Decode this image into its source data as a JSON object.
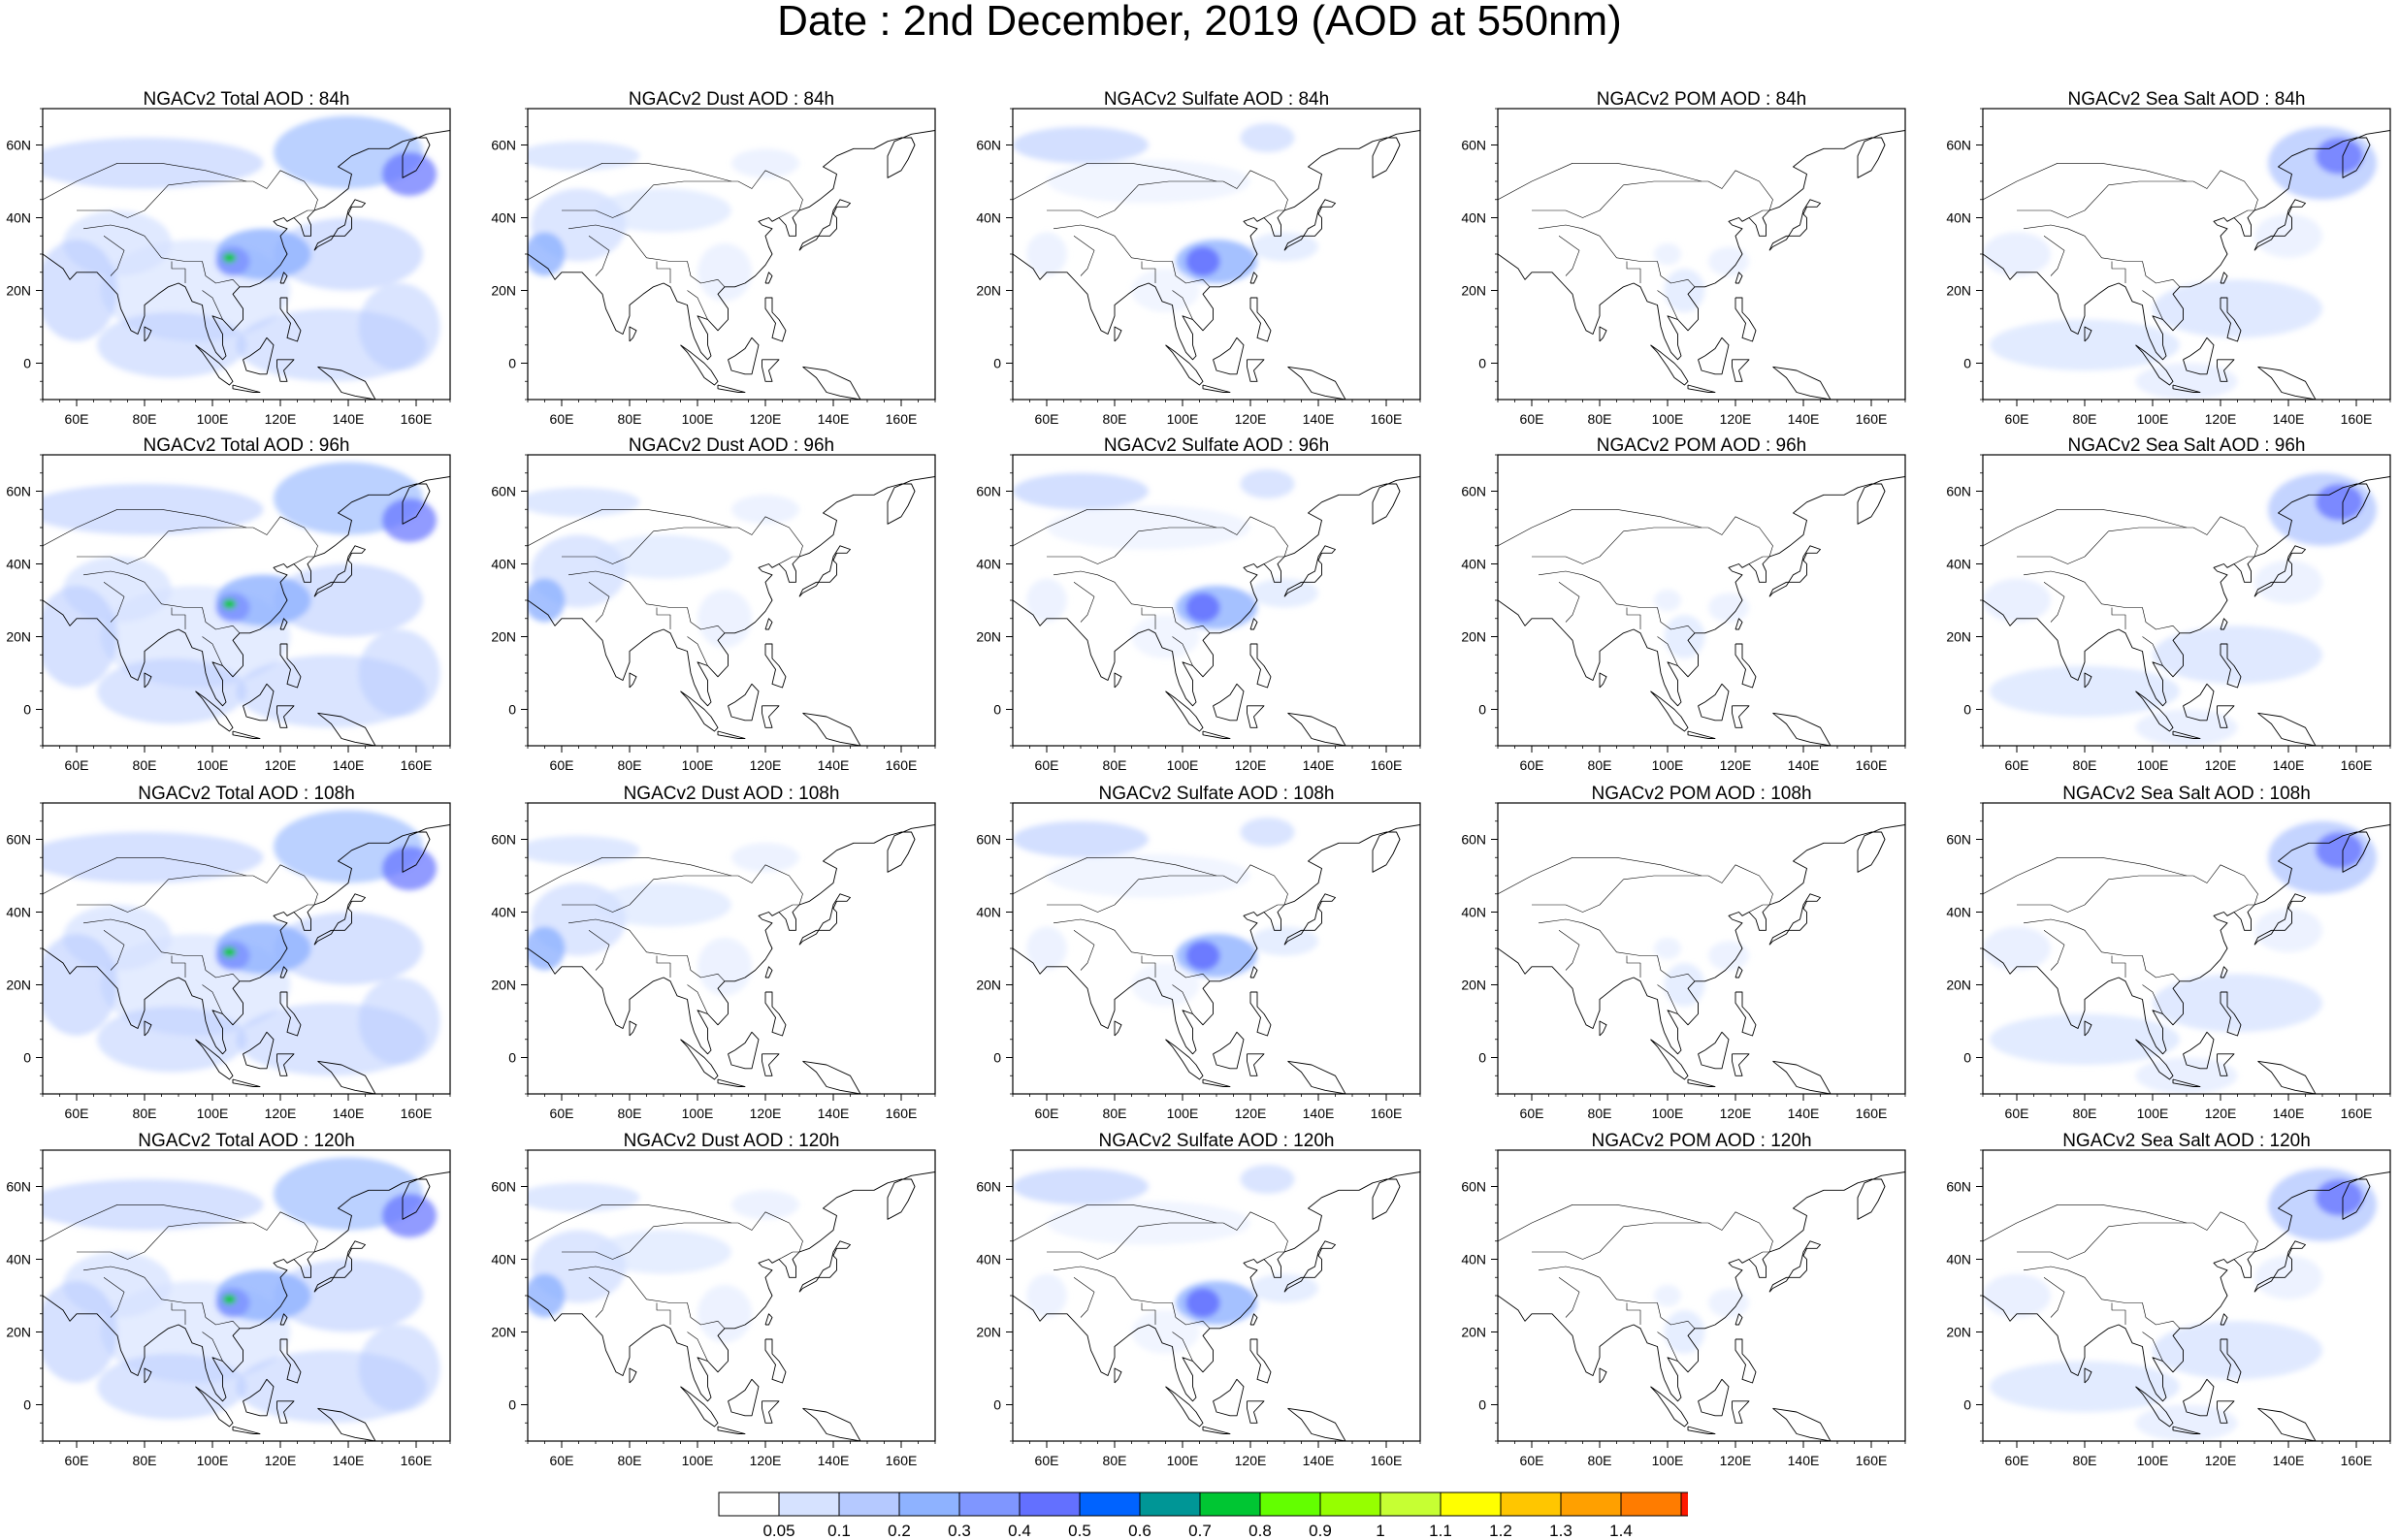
{
  "title": "Date : 2nd December, 2019 (AOD at 550nm)",
  "map_extent": {
    "lon_min": 50,
    "lon_max": 170,
    "lat_min": -10,
    "lat_max": 70
  },
  "lon_ticks": [
    "60E",
    "80E",
    "100E",
    "120E",
    "140E",
    "160E"
  ],
  "lat_ticks": [
    "60N",
    "40N",
    "20N",
    "0"
  ],
  "colorbar": {
    "levels": [
      "0.05",
      "0.1",
      "0.2",
      "0.3",
      "0.4",
      "0.5",
      "0.6",
      "0.7",
      "0.8",
      "0.9",
      "1",
      "1.1",
      "1.2",
      "1.3",
      "1.4"
    ],
    "colors": [
      "#ffffff",
      "#d6e2ff",
      "#b5c9ff",
      "#8eb2ff",
      "#7f96ff",
      "#6370ff",
      "#0063ff",
      "#009696",
      "#00c633",
      "#63ff00",
      "#96ff00",
      "#c6ff33",
      "#ffff00",
      "#ffc600",
      "#ffa000",
      "#ff7c00",
      "#ff1900"
    ]
  },
  "panels": [
    {
      "title": "NGACv2 Total AOD : 84h",
      "species": "total"
    },
    {
      "title": "NGACv2 Dust AOD : 84h",
      "species": "dust"
    },
    {
      "title": "NGACv2 Sulfate AOD : 84h",
      "species": "sulfate"
    },
    {
      "title": "NGACv2 POM AOD : 84h",
      "species": "pom"
    },
    {
      "title": "NGACv2 Sea Salt AOD : 84h",
      "species": "seasalt"
    },
    {
      "title": "NGACv2 Total AOD : 96h",
      "species": "total"
    },
    {
      "title": "NGACv2 Dust AOD : 96h",
      "species": "dust"
    },
    {
      "title": "NGACv2 Sulfate AOD : 96h",
      "species": "sulfate"
    },
    {
      "title": "NGACv2 POM AOD : 96h",
      "species": "pom"
    },
    {
      "title": "NGACv2 Sea Salt AOD : 96h",
      "species": "seasalt"
    },
    {
      "title": "NGACv2 Total AOD : 108h",
      "species": "total"
    },
    {
      "title": "NGACv2 Dust AOD : 108h",
      "species": "dust"
    },
    {
      "title": "NGACv2 Sulfate AOD : 108h",
      "species": "sulfate"
    },
    {
      "title": "NGACv2 POM AOD : 108h",
      "species": "pom"
    },
    {
      "title": "NGACv2 Sea Salt AOD : 108h",
      "species": "seasalt"
    },
    {
      "title": "NGACv2 Total AOD : 120h",
      "species": "total"
    },
    {
      "title": "NGACv2 Dust AOD : 120h",
      "species": "dust"
    },
    {
      "title": "NGACv2 Sulfate AOD : 120h",
      "species": "sulfate"
    },
    {
      "title": "NGACv2 POM AOD : 120h",
      "species": "pom"
    },
    {
      "title": "NGACv2 Sea Salt  AOD : 120h",
      "species": "seasalt"
    }
  ]
}
